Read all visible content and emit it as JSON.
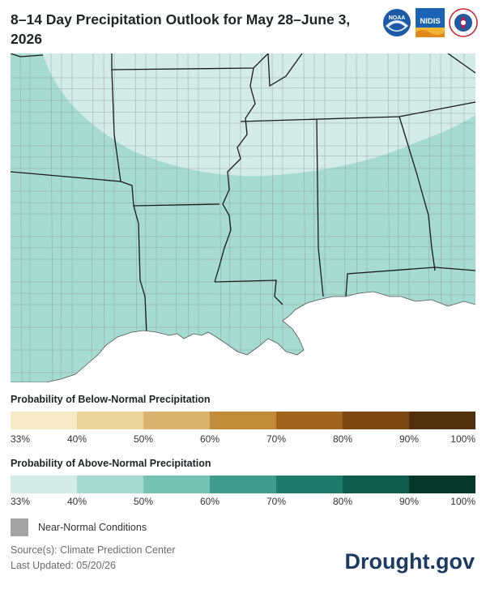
{
  "title": "8–14 Day Precipitation Outlook for May 28–June 3, 2026",
  "logos": [
    {
      "name": "noaa-logo",
      "text": "NOAA"
    },
    {
      "name": "nidis-logo",
      "text": "NIDIS"
    },
    {
      "name": "nws-logo",
      "text": ""
    }
  ],
  "legend": {
    "below_title": "Probability of Below-Normal Precipitation",
    "below_colors": [
      "#f7ebc7",
      "#ecd59a",
      "#d9b46e",
      "#c28b37",
      "#a0651d",
      "#7d4711",
      "#53300d"
    ],
    "above_title": "Probability of Above-Normal Precipitation",
    "above_colors": [
      "#d4ece8",
      "#a6dbd1",
      "#74c3b5",
      "#3e9c8d",
      "#1d7b6c",
      "#0e5d4f",
      "#063829"
    ],
    "ticks": [
      "33%",
      "40%",
      "50%",
      "60%",
      "70%",
      "80%",
      "90%",
      "100%"
    ],
    "near_normal_label": "Near-Normal Conditions",
    "near_normal_color": "#a3a3a3"
  },
  "map": {
    "land_above_40_color": "#a6dbd1",
    "land_above_33_color": "#d4ece8",
    "water_color": "#ffffff",
    "county_color": "#8c9a98",
    "state_color": "#1a1a1a"
  },
  "source_text": "Source(s): Climate Prediction Center",
  "updated_text": "Last Updated: 05/20/26",
  "brand": "Drought.gov"
}
